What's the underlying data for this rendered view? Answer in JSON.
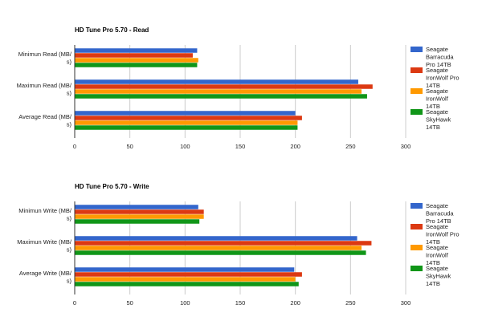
{
  "chart_data": [
    {
      "type": "bar",
      "orientation": "horizontal",
      "title": "HD Tune Pro 5.70 - Read",
      "categories": [
        [
          "Minimun Read (MB/",
          "s)"
        ],
        [
          "Maximun Read (MB/",
          "s)"
        ],
        [
          "Average Read (MB/",
          "s)"
        ]
      ],
      "series": [
        {
          "name": [
            "Seagate",
            "Barracuda",
            "Pro 14TB"
          ],
          "color": "#3366cc",
          "values": [
            111,
            257,
            200
          ]
        },
        {
          "name": [
            "Seagate",
            "IronWolf Pro",
            "14TB"
          ],
          "color": "#dc3912",
          "values": [
            107,
            270,
            206
          ]
        },
        {
          "name": [
            "Seagate",
            "IronWolf",
            "14TB"
          ],
          "color": "#ff9900",
          "values": [
            112,
            260,
            202
          ]
        },
        {
          "name": [
            "Seagate",
            "SkyHawk",
            "14TB"
          ],
          "color": "#109618",
          "values": [
            111,
            265,
            202
          ]
        }
      ],
      "xlim": [
        0,
        300
      ],
      "xticks": [
        "0",
        "50",
        "100",
        "150",
        "200",
        "250",
        "300"
      ],
      "legend_position": "right"
    },
    {
      "type": "bar",
      "orientation": "horizontal",
      "title": "HD Tune Pro 5.70 - Write",
      "categories": [
        [
          "Minimun Write (MB/",
          "s)"
        ],
        [
          "Maximun Write (MB/",
          "s)"
        ],
        [
          "Average Write (MB/",
          "s)"
        ]
      ],
      "series": [
        {
          "name": [
            "Seagate",
            "Barracuda",
            "Pro 14TB"
          ],
          "color": "#3366cc",
          "values": [
            112,
            256,
            199
          ]
        },
        {
          "name": [
            "Seagate",
            "IronWolf Pro",
            "14TB"
          ],
          "color": "#dc3912",
          "values": [
            117,
            269,
            206
          ]
        },
        {
          "name": [
            "Seagate",
            "IronWolf",
            "14TB"
          ],
          "color": "#ff9900",
          "values": [
            117,
            260,
            200
          ]
        },
        {
          "name": [
            "Seagate",
            "SkyHawk",
            "14TB"
          ],
          "color": "#109618",
          "values": [
            113,
            264,
            203
          ]
        }
      ],
      "xlim": [
        0,
        300
      ],
      "xticks": [
        "0",
        "50",
        "100",
        "150",
        "200",
        "250",
        "300"
      ],
      "legend_position": "right"
    }
  ]
}
